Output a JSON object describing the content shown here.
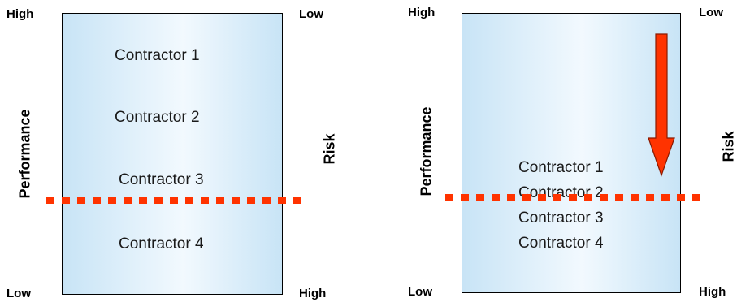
{
  "left_panel": {
    "performance_high": "High",
    "performance_low": "Low",
    "performance_axis": "Performance",
    "risk_low": "Low",
    "risk_high": "High",
    "risk_axis": "Risk",
    "contractors": [
      "Contractor 1",
      "Contractor 2",
      "Contractor 3",
      "Contractor 4"
    ]
  },
  "right_panel": {
    "performance_high": "High",
    "performance_low": "Low",
    "performance_axis": "Performance",
    "risk_low": "Low",
    "risk_high": "High",
    "risk_axis": "Risk",
    "contractors": [
      "Contractor 1",
      "Contractor 2",
      "Contractor 3",
      "Contractor 4"
    ]
  },
  "colors": {
    "box_edge": "#c8e4f6",
    "box_center": "#f2f9fe",
    "threshold_line": "#ff3300",
    "arrow_fill": "#ff3300"
  }
}
